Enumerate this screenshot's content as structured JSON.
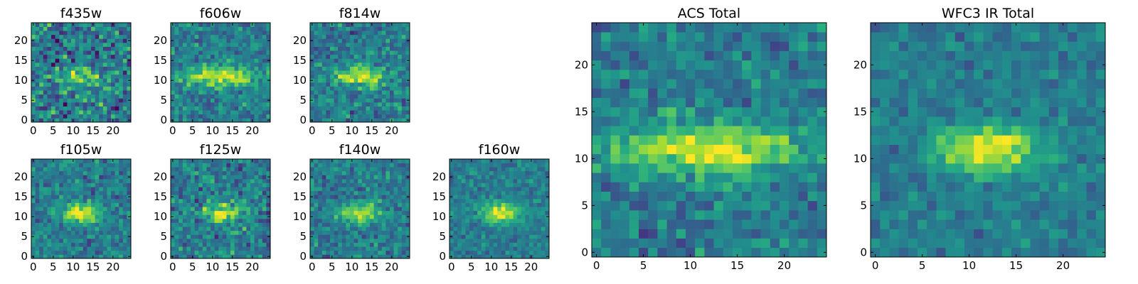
{
  "chart_data": [
    {
      "type": "heatmap",
      "title": "f435w",
      "grid_size": 25,
      "xticks": [
        0,
        5,
        10,
        15,
        20
      ],
      "yticks": [
        0,
        5,
        10,
        15,
        20
      ],
      "colormap": "viridis",
      "source_elongation": 2.4,
      "noise": 0.85,
      "peak": 0.55
    },
    {
      "type": "heatmap",
      "title": "f606w",
      "grid_size": 25,
      "xticks": [
        0,
        5,
        10,
        15,
        20
      ],
      "yticks": [
        0,
        5,
        10,
        15,
        20
      ],
      "colormap": "viridis",
      "source_elongation": 3.0,
      "noise": 0.55,
      "peak": 0.9
    },
    {
      "type": "heatmap",
      "title": "f814w",
      "grid_size": 25,
      "xticks": [
        0,
        5,
        10,
        15,
        20
      ],
      "yticks": [
        0,
        5,
        10,
        15,
        20
      ],
      "colormap": "viridis",
      "source_elongation": 2.0,
      "noise": 0.6,
      "peak": 0.9
    },
    {
      "type": "heatmap",
      "title": "f105w",
      "grid_size": 25,
      "xticks": [
        0,
        5,
        10,
        15,
        20
      ],
      "yticks": [
        0,
        5,
        10,
        15,
        20
      ],
      "colormap": "viridis",
      "source_elongation": 1.6,
      "noise": 0.5,
      "peak": 0.9
    },
    {
      "type": "heatmap",
      "title": "f125w",
      "grid_size": 25,
      "xticks": [
        0,
        5,
        10,
        15,
        20
      ],
      "yticks": [
        0,
        5,
        10,
        15,
        20
      ],
      "colormap": "viridis",
      "source_elongation": 1.6,
      "noise": 0.65,
      "peak": 0.8
    },
    {
      "type": "heatmap",
      "title": "f140w",
      "grid_size": 25,
      "xticks": [
        0,
        5,
        10,
        15,
        20
      ],
      "yticks": [
        0,
        5,
        10,
        15,
        20
      ],
      "colormap": "viridis",
      "source_elongation": 1.6,
      "noise": 0.5,
      "peak": 0.85
    },
    {
      "type": "heatmap",
      "title": "f160w",
      "grid_size": 25,
      "xticks": [
        0,
        5,
        10,
        15,
        20
      ],
      "yticks": [
        0,
        5,
        10,
        15,
        20
      ],
      "colormap": "viridis",
      "source_elongation": 1.5,
      "noise": 0.4,
      "peak": 0.95
    },
    {
      "type": "heatmap",
      "title": "ACS Total",
      "grid_size": 25,
      "xticks": [
        0,
        5,
        10,
        15,
        20
      ],
      "yticks": [
        0,
        5,
        10,
        15,
        20
      ],
      "colormap": "viridis",
      "source_elongation": 3.2,
      "noise": 0.5,
      "peak": 1.0
    },
    {
      "type": "heatmap",
      "title": "WFC3 IR Total",
      "grid_size": 25,
      "xticks": [
        0,
        5,
        10,
        15,
        20
      ],
      "yticks": [
        0,
        5,
        10,
        15,
        20
      ],
      "colormap": "viridis",
      "source_elongation": 1.7,
      "noise": 0.35,
      "peak": 1.0
    }
  ]
}
